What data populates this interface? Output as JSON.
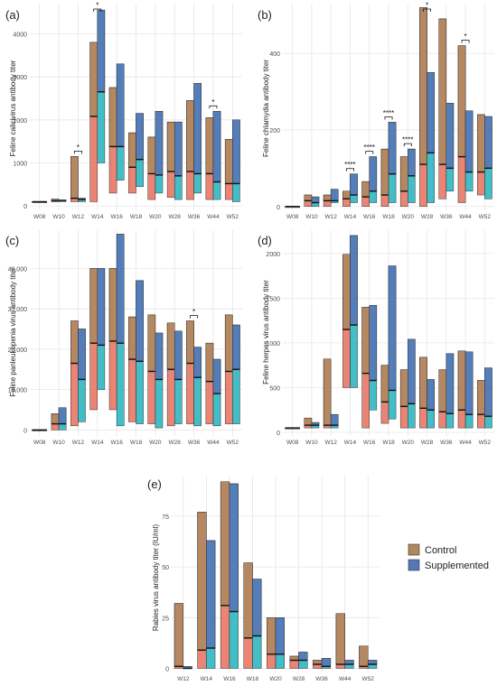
{
  "colors": {
    "control_fill": "#B08860",
    "supplemented_fill": "#5577B8",
    "control_red": "#E66F5C",
    "supplemented_teal": "#22B2BC",
    "grid": "#E6E6E6",
    "axis_text": "#4D4D4D"
  },
  "legend": {
    "items": [
      {
        "name": "Control",
        "color": "#B08860"
      },
      {
        "name": "Supplemented",
        "color": "#5577B8"
      }
    ],
    "placement": "right of panel (e)"
  },
  "chart_data": [
    {
      "type": "bar",
      "panel_label": "(a)",
      "ylabel": "Feline calicivirus antibody titer",
      "categories": [
        "W08",
        "W10",
        "W12",
        "W14",
        "W16",
        "W18",
        "W20",
        "W28",
        "W36",
        "W44",
        "W52"
      ],
      "ylim": [
        -100,
        4700
      ],
      "yticks": [
        0,
        1000,
        2000,
        3000,
        4000
      ],
      "ytick_labels": [
        "0",
        "1000",
        "2000",
        "3000",
        "4000"
      ],
      "series": [
        {
          "name": "Control",
          "min": [
            100,
            100,
            100,
            100,
            300,
            300,
            150,
            200,
            150,
            150,
            150
          ],
          "max": [
            100,
            160,
            1150,
            3800,
            2750,
            1700,
            1600,
            1950,
            2450,
            2050,
            1550
          ],
          "median": [
            100,
            120,
            180,
            2080,
            1380,
            900,
            750,
            800,
            800,
            750,
            520
          ]
        },
        {
          "name": "Supplemented",
          "min": [
            100,
            100,
            100,
            1000,
            600,
            450,
            300,
            150,
            300,
            150,
            100
          ],
          "max": [
            100,
            140,
            180,
            4550,
            3300,
            2150,
            2200,
            1950,
            2850,
            2200,
            2000
          ],
          "median": [
            100,
            130,
            150,
            2650,
            1380,
            1080,
            720,
            700,
            750,
            560,
            520
          ]
        }
      ],
      "significance": [
        {
          "category": "W12",
          "label": "*"
        },
        {
          "category": "W14",
          "label": "*"
        },
        {
          "category": "W44",
          "label": "*"
        }
      ],
      "grid": true
    },
    {
      "type": "bar",
      "panel_label": "(b)",
      "ylabel": "Feline chlamydia antibody titer",
      "categories": [
        "W08",
        "W10",
        "W12",
        "W14",
        "W16",
        "W18",
        "W20",
        "W28",
        "W36",
        "W44",
        "W52"
      ],
      "ylim": [
        -10,
        530
      ],
      "yticks": [
        0,
        200,
        400
      ],
      "ytick_labels": [
        "0",
        "200",
        "400"
      ],
      "series": [
        {
          "name": "Control",
          "min": [
            0,
            0,
            0,
            0,
            0,
            0,
            0,
            0,
            20,
            10,
            30
          ],
          "max": [
            0,
            30,
            30,
            40,
            65,
            150,
            130,
            520,
            490,
            420,
            240
          ],
          "median": [
            0,
            15,
            15,
            20,
            25,
            30,
            40,
            110,
            110,
            130,
            90
          ]
        },
        {
          "name": "Supplemented",
          "min": [
            0,
            0,
            10,
            10,
            10,
            10,
            10,
            10,
            40,
            40,
            20
          ],
          "max": [
            0,
            25,
            45,
            85,
            130,
            220,
            150,
            350,
            270,
            250,
            235
          ],
          "median": [
            0,
            10,
            15,
            30,
            40,
            85,
            80,
            140,
            100,
            90,
            100
          ]
        }
      ],
      "significance": [
        {
          "category": "W14",
          "label": "****"
        },
        {
          "category": "W16",
          "label": "****"
        },
        {
          "category": "W18",
          "label": "****"
        },
        {
          "category": "W20",
          "label": "****"
        },
        {
          "category": "W28",
          "label": "*"
        },
        {
          "category": "W44",
          "label": "*"
        }
      ],
      "grid": true
    },
    {
      "type": "bar",
      "panel_label": "(c)",
      "ylabel": "Feline panleukopenia virus antibody titer",
      "categories": [
        "W08",
        "W10",
        "W12",
        "W14",
        "W16",
        "W18",
        "W20",
        "W28",
        "W36",
        "W44",
        "W52"
      ],
      "ylim": [
        -1500,
        49500
      ],
      "yticks": [
        0,
        10000,
        20000,
        30000,
        40000
      ],
      "ytick_labels": [
        "0",
        "10,000",
        "20,000",
        "30,000",
        "40,000"
      ],
      "series": [
        {
          "name": "Control",
          "min": [
            0,
            0,
            1000,
            5000,
            5000,
            2000,
            1500,
            1000,
            1500,
            1500,
            1500
          ],
          "max": [
            0,
            4000,
            27000,
            40000,
            40000,
            28000,
            28500,
            26500,
            27000,
            21500,
            28500
          ],
          "median": [
            0,
            1500,
            16500,
            21500,
            22000,
            17500,
            14500,
            15000,
            16500,
            12000,
            14500
          ]
        },
        {
          "name": "Supplemented",
          "min": [
            0,
            0,
            2000,
            10000,
            1000,
            1500,
            500,
            1500,
            1000,
            1000,
            1500
          ],
          "max": [
            0,
            5500,
            25000,
            40000,
            48500,
            37000,
            24000,
            24500,
            20500,
            17500,
            26000
          ],
          "median": [
            0,
            1500,
            12500,
            21000,
            21500,
            17000,
            12500,
            12500,
            13000,
            9000,
            15000
          ]
        }
      ],
      "significance": [
        {
          "category": "W36",
          "label": "*"
        }
      ],
      "grid": true
    },
    {
      "type": "bar",
      "panel_label": "(d)",
      "ylabel": "Feline herpes virus antibody titer",
      "categories": [
        "W08",
        "W10",
        "W12",
        "W14",
        "W16",
        "W18",
        "W20",
        "W28",
        "W36",
        "W44",
        "W52"
      ],
      "ylim": [
        -40,
        2260
      ],
      "yticks": [
        0,
        500,
        1000,
        1500,
        2000
      ],
      "ytick_labels": [
        "0",
        "500",
        "1000",
        "1500",
        "2000"
      ],
      "series": [
        {
          "name": "Control",
          "min": [
            50,
            50,
            50,
            500,
            50,
            100,
            50,
            50,
            50,
            50,
            50
          ],
          "max": [
            50,
            160,
            820,
            1990,
            1400,
            750,
            700,
            840,
            700,
            910,
            580
          ],
          "median": [
            50,
            80,
            80,
            1150,
            660,
            340,
            290,
            270,
            230,
            250,
            200
          ]
        },
        {
          "name": "Supplemented",
          "min": [
            50,
            50,
            50,
            500,
            250,
            150,
            50,
            50,
            50,
            50,
            50
          ],
          "max": [
            50,
            110,
            200,
            2200,
            1420,
            1860,
            1040,
            590,
            880,
            900,
            720
          ],
          "median": [
            50,
            80,
            80,
            1200,
            580,
            470,
            320,
            250,
            210,
            200,
            180
          ]
        }
      ],
      "significance": [],
      "grid": true
    },
    {
      "type": "bar",
      "panel_label": "(e)",
      "ylabel": "Rabies virus antibody titer (IU/ml)",
      "categories": [
        "W12",
        "W14",
        "W16",
        "W18",
        "W20",
        "W28",
        "W36",
        "W44",
        "W52"
      ],
      "ylim": [
        -2,
        95
      ],
      "yticks": [
        0,
        25,
        50,
        75
      ],
      "ytick_labels": [
        "0",
        "25",
        "50",
        "75"
      ],
      "series": [
        {
          "name": "Control",
          "min": [
            0,
            0,
            0,
            0,
            0,
            0,
            0,
            0,
            0
          ],
          "max": [
            32,
            77,
            92,
            52,
            25,
            6,
            4,
            27,
            11
          ],
          "median": [
            1,
            9,
            31,
            15,
            7,
            4,
            2,
            2,
            1
          ]
        },
        {
          "name": "Supplemented",
          "min": [
            0,
            0,
            0,
            0,
            0,
            0,
            0,
            0,
            0
          ],
          "max": [
            1,
            63,
            91,
            44,
            25,
            8,
            5,
            4,
            4
          ],
          "median": [
            0,
            10,
            28,
            16,
            7,
            4,
            1,
            2,
            2
          ]
        }
      ],
      "significance": [],
      "grid": true
    }
  ]
}
